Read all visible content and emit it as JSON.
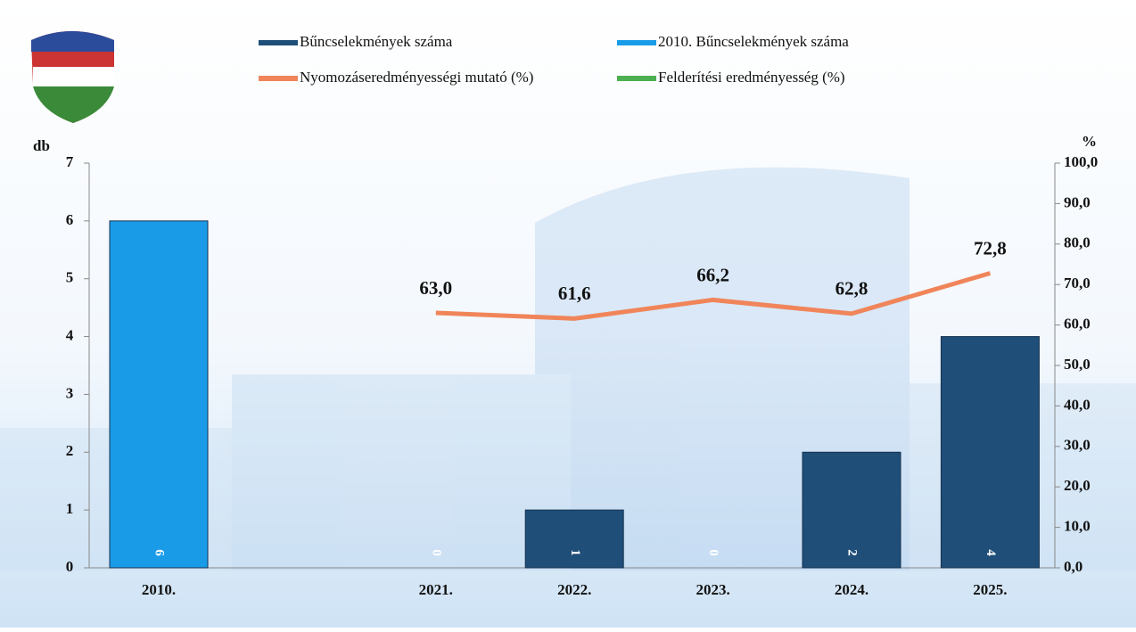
{
  "chart_data": {
    "type": "bar",
    "categories": [
      "2010.",
      null,
      "2021.",
      "2022.",
      "2023.",
      "2024.",
      "2025."
    ],
    "y_label": "db",
    "y2_label": "%",
    "ylim": [
      0,
      7
    ],
    "yticks": [
      0,
      1,
      2,
      3,
      4,
      5,
      6,
      7
    ],
    "y2lim": [
      0,
      100
    ],
    "y2ticks": [
      {
        "value": 0,
        "label": "0,0"
      },
      {
        "value": 10,
        "label": "10,0"
      },
      {
        "value": 20,
        "label": "20,0"
      },
      {
        "value": 30,
        "label": "30,0"
      },
      {
        "value": 40,
        "label": "40,0"
      },
      {
        "value": 50,
        "label": "50,0"
      },
      {
        "value": 60,
        "label": "60,0"
      },
      {
        "value": 70,
        "label": "70,0"
      },
      {
        "value": 80,
        "label": "80,0"
      },
      {
        "value": 90,
        "label": "90,0"
      },
      {
        "value": 100,
        "label": "100,0"
      }
    ],
    "series": [
      {
        "name": "Bűncselekmények száma",
        "type": "bar",
        "color": "#1f4e79",
        "values": [
          null,
          null,
          0,
          1,
          0,
          2,
          4
        ]
      },
      {
        "name": "2010. Bűncselekmények száma",
        "type": "bar",
        "color": "#1a9be8",
        "values": [
          6,
          null,
          null,
          null,
          null,
          null,
          null
        ]
      },
      {
        "name": "Nyomozáseredményességi mutató (%)",
        "type": "line",
        "axis": "y2",
        "color": "#f0855a",
        "values": [
          null,
          null,
          63.0,
          61.6,
          66.2,
          62.8,
          72.8
        ],
        "value_labels": [
          null,
          null,
          "63,0",
          "61,6",
          "66,2",
          "62,8",
          "72,8"
        ]
      },
      {
        "name": "Felderítési eredményesség (%)",
        "type": "line",
        "axis": "y2",
        "color": "#4caf50",
        "values": [
          null,
          null,
          null,
          null,
          null,
          null,
          null
        ]
      }
    ]
  }
}
